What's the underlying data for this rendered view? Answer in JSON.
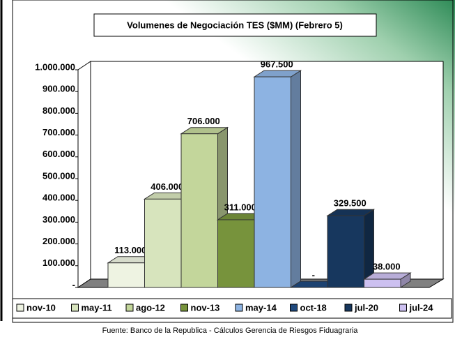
{
  "chart_data": {
    "type": "bar3d",
    "title": "Volumenes de Negociación TES ($MM) (Febrero 5)",
    "categories": [
      "nov-10",
      "may-11",
      "ago-12",
      "nov-13",
      "may-14",
      "oct-18",
      "jul-20",
      "jul-24"
    ],
    "values": [
      113000,
      406000,
      706000,
      311000,
      967500,
      0,
      329500,
      38000
    ],
    "value_labels": [
      "113.000",
      "406.000",
      "706.000",
      "311.000",
      "967.500",
      "-",
      "329.500",
      "38.000"
    ],
    "colors": [
      "#eef3e2",
      "#d7e4bd",
      "#c3d69b",
      "#77933c",
      "#8db3e2",
      "#1f497d",
      "#17375e",
      "#ccc0f0"
    ],
    "ylim": [
      0,
      1000000
    ],
    "yticks": [
      {
        "value": 0,
        "label": "-"
      },
      {
        "value": 100000,
        "label": "100.000"
      },
      {
        "value": 200000,
        "label": "200.000"
      },
      {
        "value": 300000,
        "label": "300.000"
      },
      {
        "value": 400000,
        "label": "400.000"
      },
      {
        "value": 500000,
        "label": "500.000"
      },
      {
        "value": 600000,
        "label": "600.000"
      },
      {
        "value": 700000,
        "label": "700.000"
      },
      {
        "value": 800000,
        "label": "800.000"
      },
      {
        "value": 900000,
        "label": "900.000"
      },
      {
        "value": 1000000,
        "label": "1.000.000"
      }
    ],
    "legend": "bottom",
    "source": "Fuente: Banco de la Republica - Cálculos Gerencia de Riesgos Fiduagraria"
  }
}
